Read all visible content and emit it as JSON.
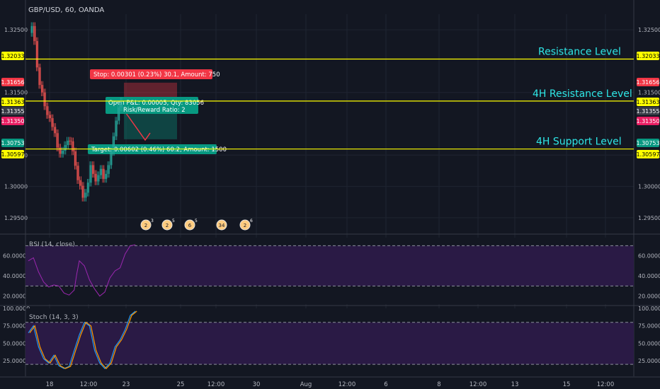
{
  "symbol_title": "GBP/USD, 60, OANDA",
  "price_axis": {
    "ticks": [
      "1.32500",
      "1.31500",
      "1.30500",
      "1.30000",
      "1.29500"
    ],
    "tags": [
      {
        "label": "1.32033",
        "price": 1.32033,
        "bg": "#ffff00",
        "fg": "#000000"
      },
      {
        "label": "1.31656",
        "price": 1.31656,
        "bg": "#f23645",
        "fg": "#ffffff"
      },
      {
        "label": "1.31363",
        "price": 1.31363,
        "bg": "#ffff00",
        "fg": "#000000"
      },
      {
        "label": "1.31355",
        "price": 1.31355,
        "bg": "#363a45",
        "fg": "#ffffff"
      },
      {
        "label": "1.31350",
        "price": 1.3135,
        "bg": "#e91e63",
        "fg": "#ffffff"
      },
      {
        "label": "1.30753",
        "price": 1.30753,
        "bg": "#089981",
        "fg": "#ffffff"
      },
      {
        "label": "1.30597",
        "price": 1.30597,
        "bg": "#ffff00",
        "fg": "#000000"
      }
    ],
    "ylim": [
      1.2925,
      1.3275
    ]
  },
  "x_axis": {
    "labels": [
      "18",
      "12:00",
      "23",
      "25",
      "12:00",
      "30",
      "Aug",
      "12:00",
      "6",
      "8",
      "12:00",
      "13",
      "15",
      "12:00"
    ]
  },
  "levels": [
    {
      "label": "Resistance Level",
      "price": 1.32033
    },
    {
      "label": "4H Resistance Level",
      "price": 1.31363
    },
    {
      "label": "4H Support Level",
      "price": 1.30597
    }
  ],
  "position": {
    "stop_label": "Stop: 0.00301 (0.23%) 30.1, Amount: 750",
    "open_label": "Open P&L: 0.00005, Qty: 83056",
    "rr_label": "Risk/Reward Ratio: 2",
    "target_label": "Target: 0.00602 (0.46%) 60.2, Amount: 1500",
    "entry": 1.31355,
    "stop": 1.31656,
    "target": 1.30753
  },
  "events": [
    {
      "label": "2",
      "sub": "3"
    },
    {
      "label": "2",
      "sub": "5"
    },
    {
      "label": "6",
      "sub": "5"
    },
    {
      "label": "34",
      "sub": ""
    },
    {
      "label": "2",
      "sub": "6"
    }
  ],
  "rsi": {
    "title": "RSI (14, close)",
    "ticks": [
      "60.0000",
      "40.0000",
      "20.0000"
    ],
    "ylim": [
      12,
      78
    ],
    "upper": 70,
    "lower": 30
  },
  "stoch": {
    "title": "Stoch (14, 3, 3)",
    "ticks": [
      "100.0000",
      "75.0000",
      "50.0000",
      "25.0000"
    ],
    "ylim": [
      3,
      100
    ],
    "upper": 80,
    "lower": 20
  },
  "colors": {
    "bg": "#131722",
    "up": "#26a69a",
    "down": "#ef5350",
    "grid": "#1f2431",
    "level": "#ffff00",
    "label": "#2ee7e7",
    "rsi": "#9c27b0",
    "stoch_k": "#2196f3",
    "stoch_d": "#ff9800"
  },
  "chart_data": {
    "type": "candlestick",
    "title": "GBP/USD, 60, OANDA",
    "price_points": [
      [
        0,
        1.3245
      ],
      [
        1,
        1.3256
      ],
      [
        2,
        1.3232
      ],
      [
        3,
        1.319
      ],
      [
        4,
        1.3162
      ],
      [
        5,
        1.315
      ],
      [
        6,
        1.3128
      ],
      [
        7,
        1.3114
      ],
      [
        8,
        1.3109
      ],
      [
        9,
        1.3095
      ],
      [
        10,
        1.3085
      ],
      [
        11,
        1.3062
      ],
      [
        12,
        1.3052
      ],
      [
        13,
        1.3057
      ],
      [
        14,
        1.3066
      ],
      [
        15,
        1.3073
      ],
      [
        16,
        1.3072
      ],
      [
        17,
        1.3056
      ],
      [
        18,
        1.3033
      ],
      [
        19,
        1.301
      ],
      [
        20,
        1.3001
      ],
      [
        21,
        1.2982
      ],
      [
        22,
        1.299
      ],
      [
        23,
        1.3006
      ],
      [
        24,
        1.3034
      ],
      [
        25,
        1.302
      ],
      [
        26,
        1.3008
      ],
      [
        27,
        1.3018
      ],
      [
        28,
        1.3028
      ],
      [
        29,
        1.3012
      ],
      [
        30,
        1.302
      ],
      [
        31,
        1.3034
      ],
      [
        32,
        1.3055
      ],
      [
        33,
        1.308
      ],
      [
        34,
        1.3105
      ],
      [
        35,
        1.3126
      ],
      [
        36,
        1.3136
      ]
    ],
    "levels": [
      1.32033,
      1.31363,
      1.30597
    ],
    "rsi_points": [
      [
        0,
        55
      ],
      [
        2,
        58
      ],
      [
        4,
        44
      ],
      [
        6,
        34
      ],
      [
        8,
        29
      ],
      [
        10,
        31
      ],
      [
        12,
        30
      ],
      [
        14,
        23
      ],
      [
        16,
        21
      ],
      [
        18,
        26
      ],
      [
        19,
        42
      ],
      [
        20,
        55
      ],
      [
        22,
        50
      ],
      [
        24,
        36
      ],
      [
        26,
        27
      ],
      [
        28,
        20
      ],
      [
        30,
        24
      ],
      [
        32,
        38
      ],
      [
        34,
        45
      ],
      [
        36,
        48
      ],
      [
        38,
        62
      ],
      [
        40,
        70
      ],
      [
        42,
        71
      ]
    ],
    "stoch_points": [
      [
        0,
        65
      ],
      [
        2,
        75
      ],
      [
        4,
        45
      ],
      [
        6,
        28
      ],
      [
        8,
        22
      ],
      [
        10,
        33
      ],
      [
        12,
        18
      ],
      [
        14,
        14
      ],
      [
        16,
        17
      ],
      [
        18,
        40
      ],
      [
        20,
        62
      ],
      [
        22,
        80
      ],
      [
        24,
        75
      ],
      [
        26,
        40
      ],
      [
        28,
        22
      ],
      [
        30,
        14
      ],
      [
        32,
        22
      ],
      [
        34,
        45
      ],
      [
        36,
        55
      ],
      [
        38,
        70
      ],
      [
        40,
        90
      ],
      [
        42,
        96
      ]
    ]
  }
}
